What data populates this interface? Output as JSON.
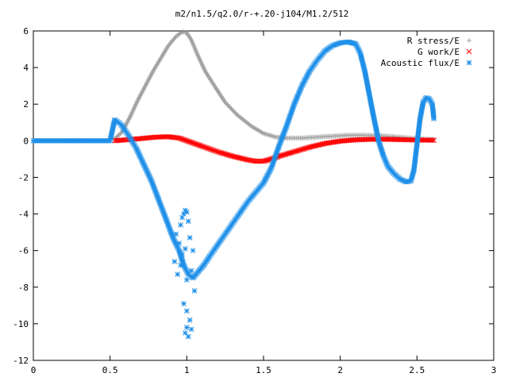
{
  "chart_data": {
    "type": "scatter",
    "title": "m2/n1.5/q2.0/r-+.20-j104/M1.2/512",
    "xlabel": "",
    "ylabel": "",
    "xlim": [
      0,
      3
    ],
    "ylim": [
      -12,
      6
    ],
    "xticks": [
      "0",
      "0.5",
      "1",
      "1.5",
      "2",
      "2.5",
      "3"
    ],
    "yticks": [
      "-12",
      "-10",
      "-8",
      "-6",
      "-4",
      "-2",
      "0",
      "2",
      "4",
      "6"
    ],
    "grid": false,
    "legend_position": "top-right",
    "series": [
      {
        "name": "R stress/E",
        "marker": "plus",
        "color": "#a0a0a0",
        "x": [
          0.53,
          0.58,
          0.63,
          0.68,
          0.73,
          0.78,
          0.83,
          0.88,
          0.93,
          0.97,
          1.0,
          1.03,
          1.07,
          1.12,
          1.18,
          1.25,
          1.33,
          1.42,
          1.5,
          1.58,
          1.65,
          1.75,
          1.85,
          1.95,
          2.05,
          2.15,
          2.25,
          2.35,
          2.45,
          2.55,
          2.61
        ],
        "y": [
          0.1,
          0.5,
          1.3,
          2.2,
          3.0,
          3.8,
          4.5,
          5.2,
          5.7,
          5.95,
          5.9,
          5.5,
          4.7,
          3.8,
          3.0,
          2.1,
          1.4,
          0.8,
          0.4,
          0.2,
          0.15,
          0.15,
          0.2,
          0.25,
          0.3,
          0.3,
          0.28,
          0.22,
          0.15,
          0.1,
          0.08
        ]
      },
      {
        "name": "G work/E",
        "marker": "x",
        "color": "#ff0000",
        "x": [
          0.53,
          0.6,
          0.7,
          0.8,
          0.88,
          0.95,
          1.0,
          1.05,
          1.1,
          1.2,
          1.3,
          1.4,
          1.45,
          1.5,
          1.55,
          1.6,
          1.7,
          1.8,
          1.9,
          2.0,
          2.1,
          2.2,
          2.3,
          2.4,
          2.5,
          2.6,
          2.61
        ],
        "y": [
          0.0,
          0.05,
          0.12,
          0.2,
          0.22,
          0.15,
          0.0,
          -0.15,
          -0.3,
          -0.6,
          -0.85,
          -1.05,
          -1.12,
          -1.12,
          -1.0,
          -0.85,
          -0.6,
          -0.35,
          -0.15,
          -0.02,
          0.05,
          0.08,
          0.08,
          0.06,
          0.04,
          0.03,
          0.03
        ]
      },
      {
        "name": "Acoustic flux/E",
        "marker": "star",
        "color": "#1e8fe8",
        "x": [
          0.0,
          0.1,
          0.2,
          0.3,
          0.4,
          0.5,
          0.53,
          0.57,
          0.62,
          0.67,
          0.72,
          0.77,
          0.82,
          0.87,
          0.91,
          0.95,
          0.98,
          1.01,
          1.04,
          1.07,
          1.11,
          1.15,
          1.2,
          1.25,
          1.3,
          1.35,
          1.4,
          1.45,
          1.5,
          1.55,
          1.6,
          1.65,
          1.7,
          1.75,
          1.8,
          1.85,
          1.9,
          1.95,
          2.0,
          2.05,
          2.1,
          2.13,
          2.16,
          2.19,
          2.22,
          2.25,
          2.28,
          2.31,
          2.35,
          2.39,
          2.43,
          2.46,
          2.48,
          2.5,
          2.52,
          2.54,
          2.56,
          2.58,
          2.6,
          2.61
        ],
        "y": [
          0.0,
          0.0,
          0.0,
          0.0,
          0.0,
          0.0,
          1.15,
          0.9,
          0.3,
          -0.4,
          -1.3,
          -2.2,
          -3.3,
          -4.4,
          -5.3,
          -6.0,
          -6.8,
          -7.3,
          -7.5,
          -7.2,
          -6.8,
          -6.3,
          -5.7,
          -5.1,
          -4.5,
          -3.9,
          -3.3,
          -2.8,
          -2.3,
          -1.5,
          -0.3,
          0.8,
          2.0,
          3.0,
          3.8,
          4.4,
          4.9,
          5.2,
          5.35,
          5.4,
          5.3,
          4.8,
          3.8,
          2.5,
          1.2,
          0.0,
          -0.8,
          -1.4,
          -1.8,
          -2.1,
          -2.25,
          -2.2,
          -1.6,
          -0.2,
          1.2,
          2.1,
          2.35,
          2.3,
          2.0,
          1.2
        ]
      },
      {
        "name": "",
        "marker": "star",
        "color": "#1e8fe8",
        "x": [
          0.96,
          0.97,
          0.98,
          0.99,
          1.0,
          1.01,
          0.93,
          0.95,
          0.97,
          0.99,
          1.02,
          1.04,
          0.92,
          0.94,
          0.96,
          1.0,
          1.03,
          1.05,
          0.98,
          1.0,
          1.02,
          1.0,
          0.99,
          1.01,
          1.03
        ],
        "y": [
          -4.6,
          -4.2,
          -4.0,
          -3.8,
          -3.9,
          -4.4,
          -5.1,
          -5.6,
          -6.2,
          -5.9,
          -5.3,
          -6.0,
          -6.6,
          -7.3,
          -6.8,
          -7.6,
          -7.1,
          -8.2,
          -8.9,
          -9.3,
          -9.8,
          -10.2,
          -10.5,
          -10.7,
          -10.3
        ]
      }
    ]
  }
}
